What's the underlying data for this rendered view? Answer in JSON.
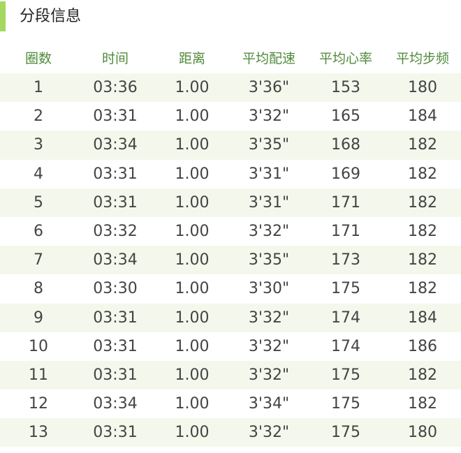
{
  "section": {
    "title": "分段信息",
    "accent_color": "#a6d860"
  },
  "table": {
    "headers": [
      "圈数",
      "时间",
      "距离",
      "平均配速",
      "平均心率",
      "平均步频"
    ],
    "rows": [
      [
        "1",
        "03:36",
        "1.00",
        "3'36\"",
        "153",
        "180"
      ],
      [
        "2",
        "03:31",
        "1.00",
        "3'32\"",
        "165",
        "184"
      ],
      [
        "3",
        "03:34",
        "1.00",
        "3'35\"",
        "168",
        "182"
      ],
      [
        "4",
        "03:31",
        "1.00",
        "3'31\"",
        "169",
        "182"
      ],
      [
        "5",
        "03:31",
        "1.00",
        "3'31\"",
        "171",
        "182"
      ],
      [
        "6",
        "03:32",
        "1.00",
        "3'32\"",
        "171",
        "182"
      ],
      [
        "7",
        "03:34",
        "1.00",
        "3'35\"",
        "173",
        "182"
      ],
      [
        "8",
        "03:30",
        "1.00",
        "3'30\"",
        "175",
        "182"
      ],
      [
        "9",
        "03:31",
        "1.00",
        "3'32\"",
        "174",
        "184"
      ],
      [
        "10",
        "03:31",
        "1.00",
        "3'32\"",
        "174",
        "186"
      ],
      [
        "11",
        "03:31",
        "1.00",
        "3'32\"",
        "175",
        "182"
      ],
      [
        "12",
        "03:34",
        "1.00",
        "3'34\"",
        "175",
        "182"
      ],
      [
        "13",
        "03:31",
        "1.00",
        "3'32\"",
        "175",
        "180"
      ]
    ]
  }
}
